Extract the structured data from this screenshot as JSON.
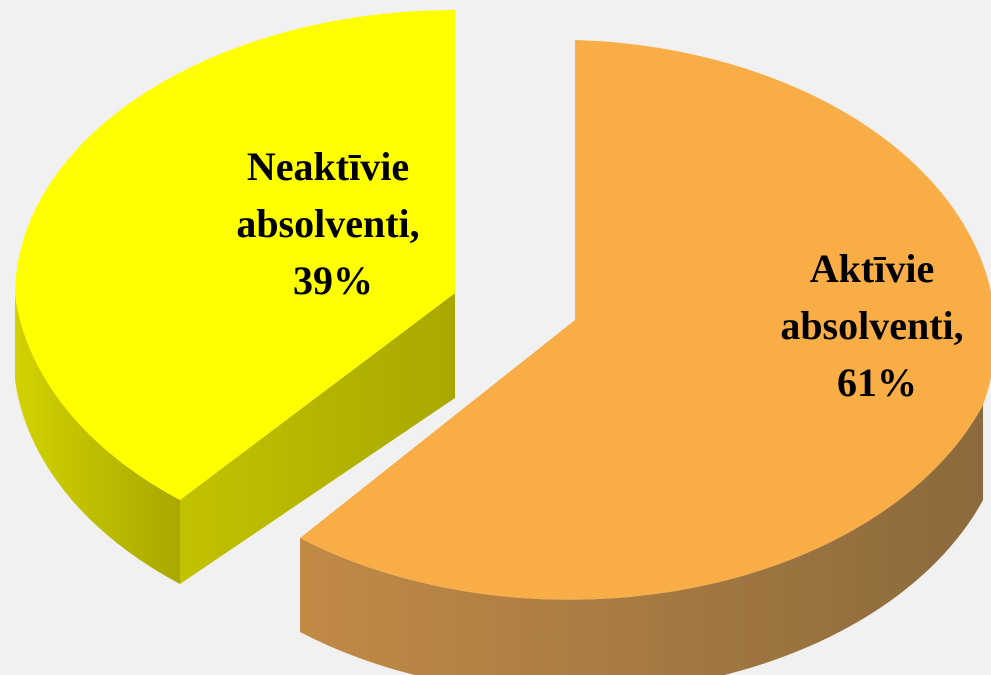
{
  "chart_data": {
    "type": "pie",
    "style": "3d-exploded",
    "slices": [
      {
        "label_lines": [
          "Aktīvie",
          "absolventi,",
          "61%"
        ],
        "value": 61,
        "color_top": "#f9ad47",
        "color_side_light": "#c18a45",
        "color_side_dark": "#8b6a3d"
      },
      {
        "label_lines": [
          "Neaktīvie",
          "absolventi,",
          "39%"
        ],
        "value": 39,
        "color_top": "#ffff00",
        "color_side_light": "#d2d200",
        "color_side_dark": "#a8a800"
      }
    ]
  }
}
